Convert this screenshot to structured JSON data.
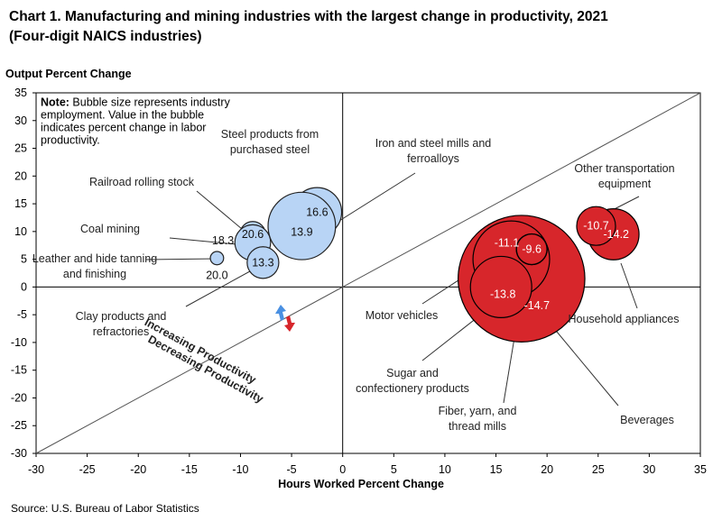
{
  "title_line1": "Chart 1. Manufacturing and mining industries with the largest change in productivity, 2021",
  "title_line2": "(Four-digit NAICS industries)",
  "source": "Source: U.S. Bureau of Labor Statistics",
  "colors": {
    "increase": "#b8d4f5",
    "increase_stroke": "#111111",
    "decrease": "#d7262b",
    "arrow_blue": "#4a90e2",
    "arrow_red": "#d7262b"
  },
  "chart_data": {
    "type": "scatter",
    "title": "Chart 1. Manufacturing and mining industries with the largest change in productivity, 2021",
    "subtitle": "(Four-digit NAICS industries)",
    "xlabel": "Hours Worked Percent Change",
    "ylabel": "Output Percent Change",
    "xlim": [
      -30,
      35
    ],
    "ylim": [
      -30,
      35
    ],
    "x_ticks": [
      -30,
      -25,
      -20,
      -15,
      -10,
      -5,
      0,
      5,
      10,
      15,
      20,
      25,
      30,
      35
    ],
    "y_ticks": [
      35,
      30,
      25,
      20,
      15,
      10,
      5,
      0,
      -5,
      -10,
      -15,
      -20,
      -25,
      -30
    ],
    "note_bold": "Note:",
    "note_lines": [
      " Bubble size represents industry",
      "employment. Value in the bubble",
      "indicates percent change in labor",
      "productivity."
    ],
    "diagonal_labels": {
      "increasing": "Increasing Productivity",
      "decreasing": "Decreasing Productivity"
    },
    "points": [
      {
        "label": "Steel products from purchased steel",
        "label_lines": [
          "Steel products from",
          "purchased steel"
        ],
        "x": -2.5,
        "y": 13.5,
        "size": 2.4,
        "value": "16.6",
        "group": "increase"
      },
      {
        "label": "Iron and steel mills and ferroalloys",
        "label_lines": [
          "Iron and steel mills and",
          "ferroalloys"
        ],
        "x": -4,
        "y": 11,
        "size": 3.3,
        "value": "13.9",
        "group": "increase"
      },
      {
        "label": "Railroad rolling stock",
        "label_lines": [
          "Railroad rolling stock"
        ],
        "x": -8.8,
        "y": 9.5,
        "size": 1.25,
        "value": "20.6",
        "group": "increase"
      },
      {
        "label": "Coal mining",
        "label_lines": [
          "Coal mining"
        ],
        "x": -8.8,
        "y": 8,
        "size": 1.75,
        "value": "18.3",
        "group": "increase"
      },
      {
        "label": "Clay products and refractories",
        "label_lines": [
          "Clay products and",
          "refractories"
        ],
        "x": -7.8,
        "y": 4.4,
        "size": 1.55,
        "value": "13.3",
        "group": "increase"
      },
      {
        "label": "Leather and hide tanning and finishing",
        "label_lines": [
          "Leather and hide tanning",
          "and finishing"
        ],
        "x": -12.3,
        "y": 5.2,
        "size": 0.65,
        "value": "20.0",
        "group": "increase"
      },
      {
        "label": "Beverages",
        "label_lines": [
          "Beverages"
        ],
        "x": 17.5,
        "y": 1.5,
        "size": 6.2,
        "value": "-14.7",
        "group": "decrease"
      },
      {
        "label": "Sugar and confectionery products",
        "label_lines": [
          "Sugar and",
          "confectionery products"
        ],
        "x": 16.5,
        "y": 5.0,
        "size": 3.75,
        "value": "-11.1",
        "group": "decrease"
      },
      {
        "label": "Motor vehicles",
        "label_lines": [
          "Motor vehicles"
        ],
        "x": 15.5,
        "y": 0.0,
        "size": 3.0,
        "value": "-13.8",
        "group": "decrease"
      },
      {
        "label": "Fiber, yarn, and thread mills",
        "label_lines": [
          "Fiber, yarn, and",
          "thread mills"
        ],
        "x": 18.5,
        "y": 6.8,
        "size": 1.5,
        "value": "-9.6",
        "group": "decrease"
      },
      {
        "label": "Household appliances",
        "label_lines": [
          "Household appliances"
        ],
        "x": 26.5,
        "y": 9.5,
        "size": 2.5,
        "value": "-14.2",
        "group": "decrease"
      },
      {
        "label": "Other transportation equipment",
        "label_lines": [
          "Other transportation",
          "equipment"
        ],
        "x": 24.8,
        "y": 11.0,
        "size": 1.9,
        "value": "-10.7",
        "group": "decrease"
      }
    ]
  }
}
